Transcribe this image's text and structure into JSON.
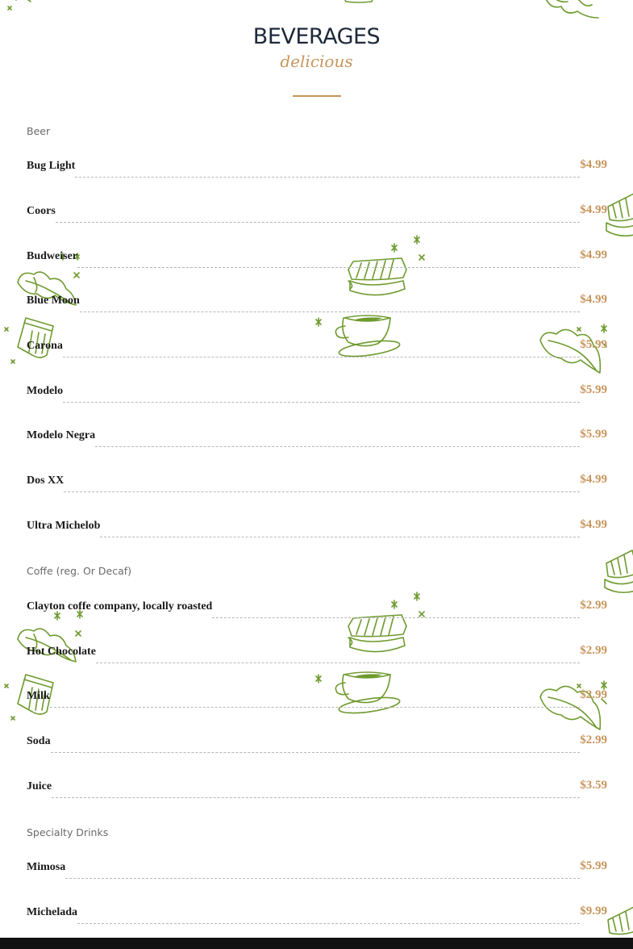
{
  "header": {
    "title": "BEVERAGES",
    "subtitle": "delicious"
  },
  "sections": [
    {
      "label": "Beer",
      "items": [
        {
          "name": "Bug Light",
          "price": "$4.99"
        },
        {
          "name": "Coors",
          "price": "$4.99"
        },
        {
          "name": "Budweiser",
          "price": "$4.99"
        },
        {
          "name": "Blue Moon",
          "price": "$4.99"
        },
        {
          "name": "Carona",
          "price": "$5.99"
        },
        {
          "name": "Modelo",
          "price": "$5.99"
        },
        {
          "name": "Modelo Negra",
          "price": "$5.99"
        },
        {
          "name": "Dos XX",
          "price": "$4.99"
        },
        {
          "name": "Ultra Michelob",
          "price": "$4.99"
        }
      ]
    },
    {
      "label": "Coffe (reg. Or Decaf)",
      "items": [
        {
          "name": "Clayton coffe company, locally roasted",
          "price": "$2.99"
        },
        {
          "name": "Hot Chocolate",
          "price": "$2.99"
        },
        {
          "name": "Milk",
          "price": "$2.99"
        },
        {
          "name": "Soda",
          "price": "$2.99"
        },
        {
          "name": "Juice",
          "price": "$3.59"
        }
      ]
    },
    {
      "label": "Specialty Drinks",
      "items": [
        {
          "name": "Mimosa",
          "price": "$5.99"
        },
        {
          "name": "Michelada",
          "price": "$9.99"
        }
      ]
    }
  ],
  "decorations": {
    "color": "#6e9a2e",
    "icons": [
      "sandwich-icon",
      "coffee-cup-icon",
      "lettuce-icon",
      "paper-cup-icon",
      "sparkle-icon"
    ]
  }
}
